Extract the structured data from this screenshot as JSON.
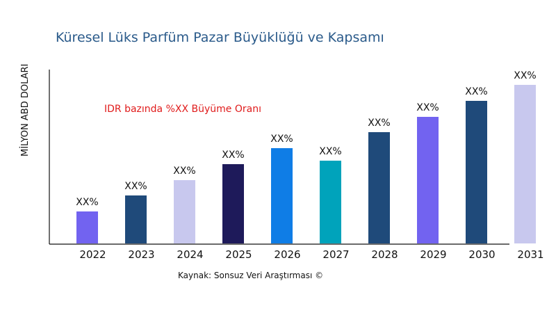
{
  "chart_data": {
    "type": "bar",
    "title": "Küresel Lüks Parfüm Pazar Büyüklüğü ve Kapsamı",
    "annotation": "IDR bazında %XX Büyüme Oranı",
    "ylabel": "MİLYON ABD DOLARI",
    "xlabel": "",
    "source": "Kaynak: Sonsuz Veri Araştırması ©",
    "categories": [
      "2022",
      "2023",
      "2024",
      "2025",
      "2026",
      "2027",
      "2028",
      "2029",
      "2030",
      "2031"
    ],
    "values": [
      46,
      69,
      91,
      114,
      137,
      119,
      160,
      182,
      205,
      228
    ],
    "data_labels": [
      "XX%",
      "XX%",
      "XX%",
      "XX%",
      "XX%",
      "XX%",
      "XX%",
      "XX%",
      "XX%",
      "XX%"
    ],
    "colors": [
      "#7263f0",
      "#1f4a7a",
      "#c8c8ee",
      "#1e1a5a",
      "#0f7de6",
      "#00a3bb",
      "#1f4a7a",
      "#7263f0",
      "#1f4a7a",
      "#c8c8ee"
    ],
    "ylim": [
      0,
      250
    ],
    "grid": false,
    "y_ticks_shown": false
  }
}
